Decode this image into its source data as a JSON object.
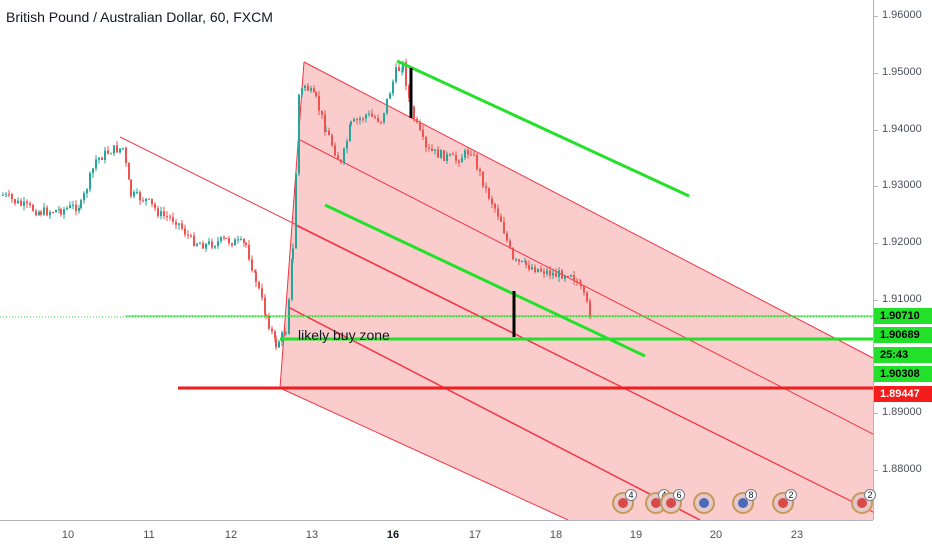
{
  "chart": {
    "title": "British Pound / Australian Dollar, 60, FXCM",
    "annotation_text": "likely buy zone"
  },
  "price_axis": {
    "ticks": [
      "1.96000",
      "1.95000",
      "1.94000",
      "1.93000",
      "1.92000",
      "1.91000",
      "1.90000",
      "1.89000",
      "1.88000"
    ],
    "badges": [
      {
        "label": "1.90710",
        "bg": "#23e12a"
      },
      {
        "label": "1.90689",
        "bg": "#23e12a"
      },
      {
        "label": "25:43",
        "bg": "#23e12a"
      },
      {
        "label": "1.90308",
        "bg": "#23e12a"
      },
      {
        "label": "1.89447",
        "bg": "#f51c1c"
      }
    ]
  },
  "time_axis": {
    "ticks": [
      {
        "label": "10",
        "bold": false
      },
      {
        "label": "11",
        "bold": false
      },
      {
        "label": "12",
        "bold": false
      },
      {
        "label": "13",
        "bold": false
      },
      {
        "label": "16",
        "bold": true
      },
      {
        "label": "17",
        "bold": false
      },
      {
        "label": "18",
        "bold": false
      },
      {
        "label": "19",
        "bold": false
      },
      {
        "label": "20",
        "bold": false
      },
      {
        "label": "23",
        "bold": false
      }
    ]
  },
  "events": [
    {
      "count": "4",
      "icon": "event-icon"
    },
    {
      "count": "4",
      "icon": "event-icon"
    },
    {
      "count": "6",
      "icon": "event-icon"
    },
    {
      "count": "",
      "icon": "uk-flag-icon"
    },
    {
      "count": "8",
      "icon": "uk-flag-icon"
    },
    {
      "count": "2",
      "icon": "event-icon"
    },
    {
      "count": "2",
      "icon": "event-icon"
    }
  ],
  "colors": {
    "bull": "#26a69a",
    "bear": "#ef5350",
    "green_line": "#23e12a",
    "red_line": "#f51c1c",
    "channel_fill": "#f9c3c3",
    "channel_line": "#f23645"
  }
}
